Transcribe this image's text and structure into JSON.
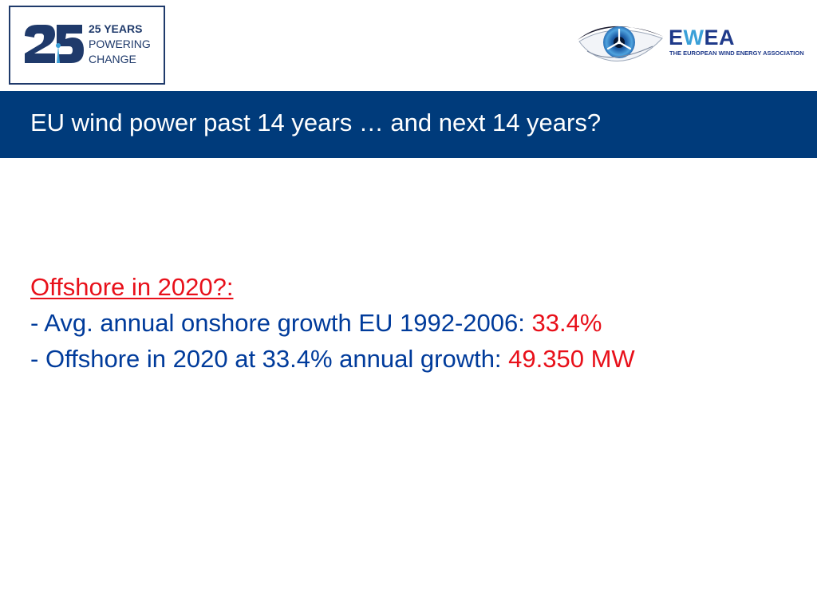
{
  "logos": {
    "anniversary": {
      "numeral": "25",
      "line1": "25 YEARS",
      "line2": "POWERING",
      "line3": "CHANGE",
      "color": "#1f3a6b"
    },
    "ewea": {
      "name_prefix": "E",
      "name_w": "W",
      "name_suffix": "EA",
      "subtitle": "THE EUROPEAN WIND ENERGY ASSOCIATION",
      "color": "#1f3a8a",
      "accent": "#3aa0d8"
    }
  },
  "title": {
    "text": "EU wind power past 14 years … and next 14 years?",
    "background": "#003b7b"
  },
  "body": {
    "heading": "Offshore in 2020?:",
    "bullets": [
      {
        "dash": "-",
        "text": "Avg. annual onshore growth EU 1992-2006: ",
        "value": "33.4%"
      },
      {
        "dash": "-",
        "text": "Offshore in 2020 at 33.4% annual growth: ",
        "value": "49.350 MW"
      }
    ],
    "text_color": "#003b9b",
    "highlight_color": "#e8101a"
  }
}
